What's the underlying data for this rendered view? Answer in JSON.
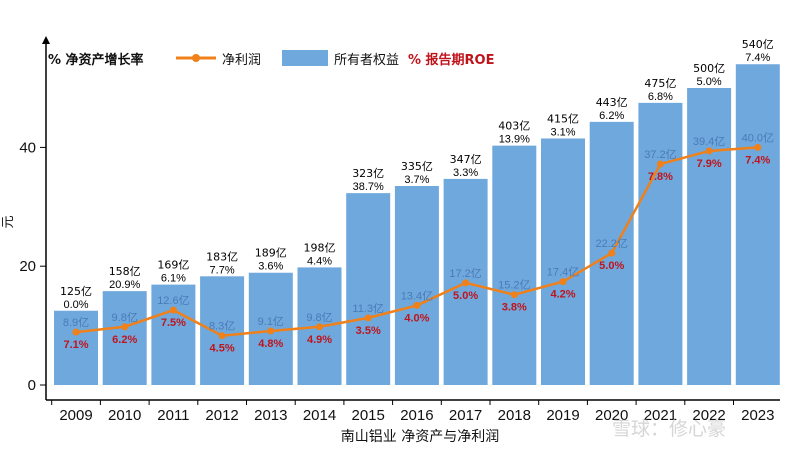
{
  "chart_data": {
    "type": "bar",
    "xlabel": "南山铝业 净资产与净利润",
    "ylabel": "元",
    "yticks": [
      "0",
      "20",
      "40"
    ],
    "ylim": [
      0,
      55
    ],
    "categories": [
      "2009",
      "2010",
      "2011",
      "2012",
      "2013",
      "2014",
      "2015",
      "2016",
      "2017",
      "2018",
      "2019",
      "2020",
      "2021",
      "2022",
      "2023"
    ],
    "series": [
      {
        "name": "所有者权益",
        "color": "#6fa8dc",
        "values": [
          12.5,
          15.8,
          16.9,
          18.3,
          18.9,
          19.8,
          32.3,
          33.5,
          34.7,
          40.3,
          41.5,
          44.3,
          47.5,
          50.0,
          54.0
        ],
        "labels": [
          "125亿",
          "158亿",
          "169亿",
          "183亿",
          "189亿",
          "198亿",
          "323亿",
          "335亿",
          "347亿",
          "403亿",
          "415亿",
          "443亿",
          "475亿",
          "500亿",
          "540亿"
        ]
      },
      {
        "name": "净利润",
        "color": "#f0801a",
        "values": [
          8.9,
          9.8,
          12.6,
          8.3,
          9.1,
          9.8,
          11.3,
          13.4,
          17.2,
          15.2,
          17.4,
          22.2,
          37.2,
          39.4,
          40.0
        ],
        "labels": [
          "8.9亿",
          "9.8亿",
          "12.6亿",
          "8.3亿",
          "9.1亿",
          "9.8亿",
          "11.3亿",
          "13.4亿",
          "17.2亿",
          "15.2亿",
          "17.4亿",
          "22.2亿",
          "37.2亿",
          "39.4亿",
          "40.0亿"
        ]
      }
    ],
    "growth_labels": [
      "0.0%",
      "20.9%",
      "6.1%",
      "7.7%",
      "3.6%",
      "4.4%",
      "38.7%",
      "3.7%",
      "3.3%",
      "13.9%",
      "3.1%",
      "6.2%",
      "6.8%",
      "5.0%",
      "7.4%"
    ],
    "roe_labels": [
      "7.1%",
      "6.2%",
      "7.5%",
      "4.5%",
      "4.8%",
      "4.9%",
      "3.5%",
      "4.0%",
      "5.0%",
      "3.8%",
      "4.2%",
      "5.0%",
      "7.8%",
      "7.9%",
      "7.4%"
    ],
    "legend": {
      "growth_label": "% 净资产增长率",
      "line_label": "净利润",
      "bar_label": "所有者权益",
      "roe_label": "% 报告期ROE",
      "position": "top-left"
    },
    "roe_color": "#c0141c"
  },
  "watermark": "雪球：修心豪"
}
